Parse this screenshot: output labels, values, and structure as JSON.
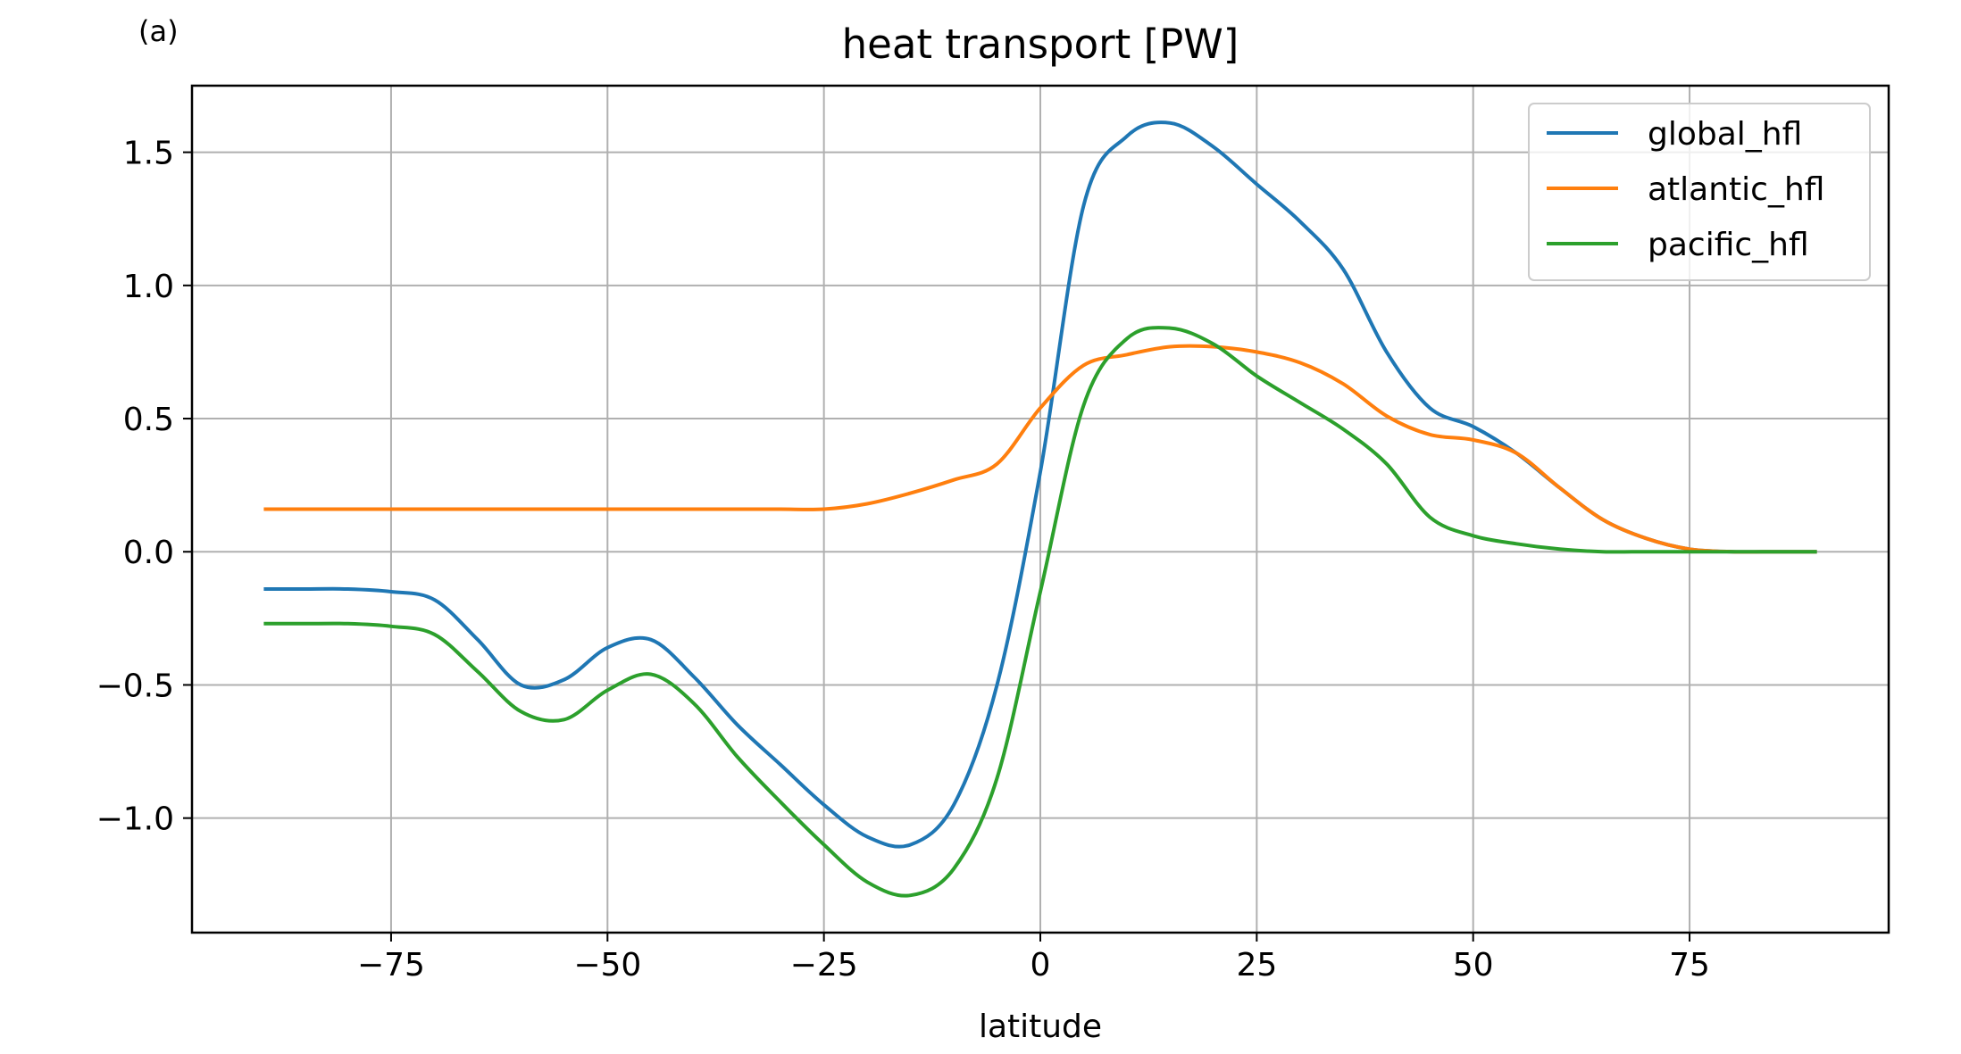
{
  "panel_label": "(a)",
  "chart_data": {
    "type": "line",
    "title": "heat transport [PW]",
    "xlabel": "latitude",
    "ylabel": "",
    "xlim": [
      -98,
      98
    ],
    "ylim": [
      -1.43,
      1.75
    ],
    "xticks": [
      -75,
      -50,
      -25,
      0,
      25,
      50,
      75
    ],
    "xtick_labels": [
      "−75",
      "−50",
      "−25",
      "0",
      "25",
      "50",
      "75"
    ],
    "yticks": [
      -1.0,
      -0.5,
      0.0,
      0.5,
      1.0,
      1.5
    ],
    "ytick_labels": [
      "−1.0",
      "−0.5",
      "0.0",
      "0.5",
      "1.0",
      "1.5"
    ],
    "grid": true,
    "legend_position": "top-right",
    "x": [
      -89.5,
      -85,
      -80,
      -75,
      -70,
      -65,
      -60,
      -55,
      -50,
      -45,
      -40,
      -35,
      -30,
      -25,
      -20,
      -15,
      -10,
      -5,
      0,
      5,
      10,
      15,
      20,
      25,
      30,
      35,
      40,
      45,
      50,
      55,
      60,
      65,
      70,
      75,
      80,
      85,
      89.5
    ],
    "series": [
      {
        "name": "global_hfl",
        "color": "#1f77b4",
        "values": [
          -0.14,
          -0.14,
          -0.14,
          -0.15,
          -0.18,
          -0.33,
          -0.5,
          -0.48,
          -0.36,
          -0.33,
          -0.47,
          -0.65,
          -0.8,
          -0.95,
          -1.07,
          -1.1,
          -0.95,
          -0.5,
          0.3,
          1.3,
          1.56,
          1.61,
          1.52,
          1.38,
          1.24,
          1.06,
          0.75,
          0.54,
          0.47,
          0.37,
          0.24,
          0.12,
          0.05,
          0.01,
          0.0,
          0.0,
          0.0
        ]
      },
      {
        "name": "atlantic_hfl",
        "color": "#ff7f0e",
        "values": [
          0.16,
          0.16,
          0.16,
          0.16,
          0.16,
          0.16,
          0.16,
          0.16,
          0.16,
          0.16,
          0.16,
          0.16,
          0.16,
          0.16,
          0.18,
          0.22,
          0.27,
          0.33,
          0.54,
          0.7,
          0.74,
          0.77,
          0.77,
          0.75,
          0.71,
          0.63,
          0.51,
          0.44,
          0.42,
          0.37,
          0.24,
          0.12,
          0.05,
          0.01,
          0.0,
          0.0,
          0.0
        ]
      },
      {
        "name": "pacific_hfl",
        "color": "#2ca02c",
        "values": [
          -0.27,
          -0.27,
          -0.27,
          -0.28,
          -0.31,
          -0.45,
          -0.6,
          -0.63,
          -0.52,
          -0.46,
          -0.57,
          -0.77,
          -0.94,
          -1.1,
          -1.24,
          -1.29,
          -1.19,
          -0.85,
          -0.15,
          0.55,
          0.8,
          0.84,
          0.78,
          0.66,
          0.56,
          0.46,
          0.33,
          0.13,
          0.06,
          0.03,
          0.01,
          0.0,
          0.0,
          0.0,
          0.0,
          0.0,
          0.0
        ]
      }
    ]
  }
}
